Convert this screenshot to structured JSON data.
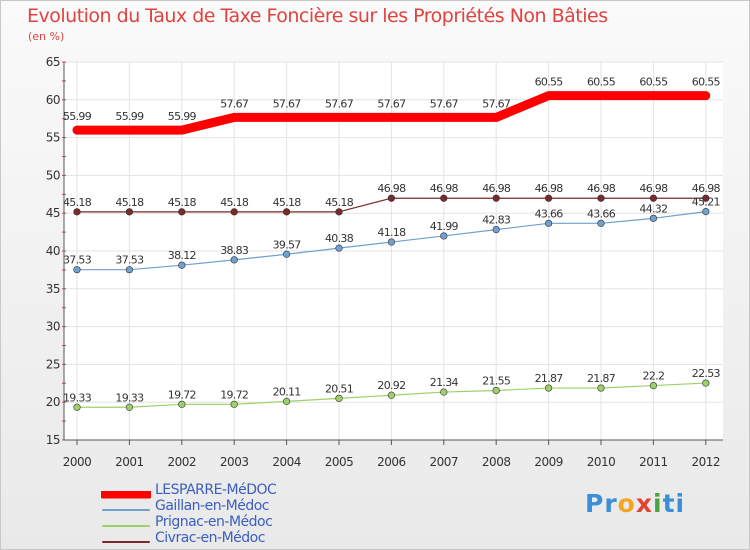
{
  "title": "Evolution du Taux de Taxe Foncière sur les Propriétés Non Bâties",
  "unit": "(en %)",
  "brand": {
    "parts": [
      "Pr",
      "o",
      "x",
      "i",
      "ti"
    ],
    "colors": [
      "#3a8fd6",
      "#f2a623",
      "#e2432f",
      "#4aa33c",
      "#3a8fd6"
    ]
  },
  "chart_data": {
    "type": "line",
    "title": "Evolution du Taux de Taxe Foncière sur les Propriétés Non Bâties",
    "ylabel": "(en %)",
    "ylim": [
      15,
      65
    ],
    "yticks": [
      15,
      20,
      25,
      30,
      35,
      40,
      45,
      50,
      55,
      60,
      65
    ],
    "grid": true,
    "categories": [
      "2000",
      "2001",
      "2002",
      "2003",
      "2004",
      "2005",
      "2006",
      "2007",
      "2008",
      "2009",
      "2010",
      "2011",
      "2012"
    ],
    "series": [
      {
        "name": "LESPARRE-MéDOC",
        "color": "#ff0000",
        "values": [
          55.99,
          55.99,
          55.99,
          57.67,
          57.67,
          57.67,
          57.67,
          57.67,
          57.67,
          60.55,
          60.55,
          60.55,
          60.55
        ],
        "labels": [
          "55.99",
          "55.99",
          "55.99",
          "57.67",
          "57.67",
          "57.67",
          "57.67",
          "57.67",
          "57.67",
          "60.55",
          "60.55",
          "60.55",
          "60.55"
        ]
      },
      {
        "name": "Gaillan-en-Médoc",
        "color": "#6ea0d0",
        "values": [
          37.53,
          37.53,
          38.12,
          38.83,
          39.57,
          40.38,
          41.18,
          41.99,
          42.83,
          43.66,
          43.66,
          44.32,
          45.21
        ],
        "labels": [
          "37.53",
          "37.53",
          "38.12",
          "38.83",
          "39.57",
          "40.38",
          "41.18",
          "41.99",
          "42.83",
          "43.66",
          "43.66",
          "44.32",
          "45.21"
        ]
      },
      {
        "name": "Prignac-en-Médoc",
        "color": "#9ed06a",
        "values": [
          19.33,
          19.33,
          19.72,
          19.72,
          20.11,
          20.51,
          20.92,
          21.34,
          21.55,
          21.87,
          21.87,
          22.2,
          22.53
        ],
        "labels": [
          "19.33",
          "19.33",
          "19.72",
          "19.72",
          "20.11",
          "20.51",
          "20.92",
          "21.34",
          "21.55",
          "21.87",
          "21.87",
          "22.2",
          "22.53"
        ]
      },
      {
        "name": "Civrac-en-Médoc",
        "color": "#7a2a2a",
        "values": [
          45.18,
          45.18,
          45.18,
          45.18,
          45.18,
          45.18,
          46.98,
          46.98,
          46.98,
          46.98,
          46.98,
          46.98,
          46.98
        ],
        "labels": [
          "45.18",
          "45.18",
          "45.18",
          "45.18",
          "45.18",
          "45.18",
          "46.98",
          "46.98",
          "46.98",
          "46.98",
          "46.98",
          "46.98",
          "46.98"
        ]
      }
    ],
    "legend_position": "bottom-left"
  }
}
